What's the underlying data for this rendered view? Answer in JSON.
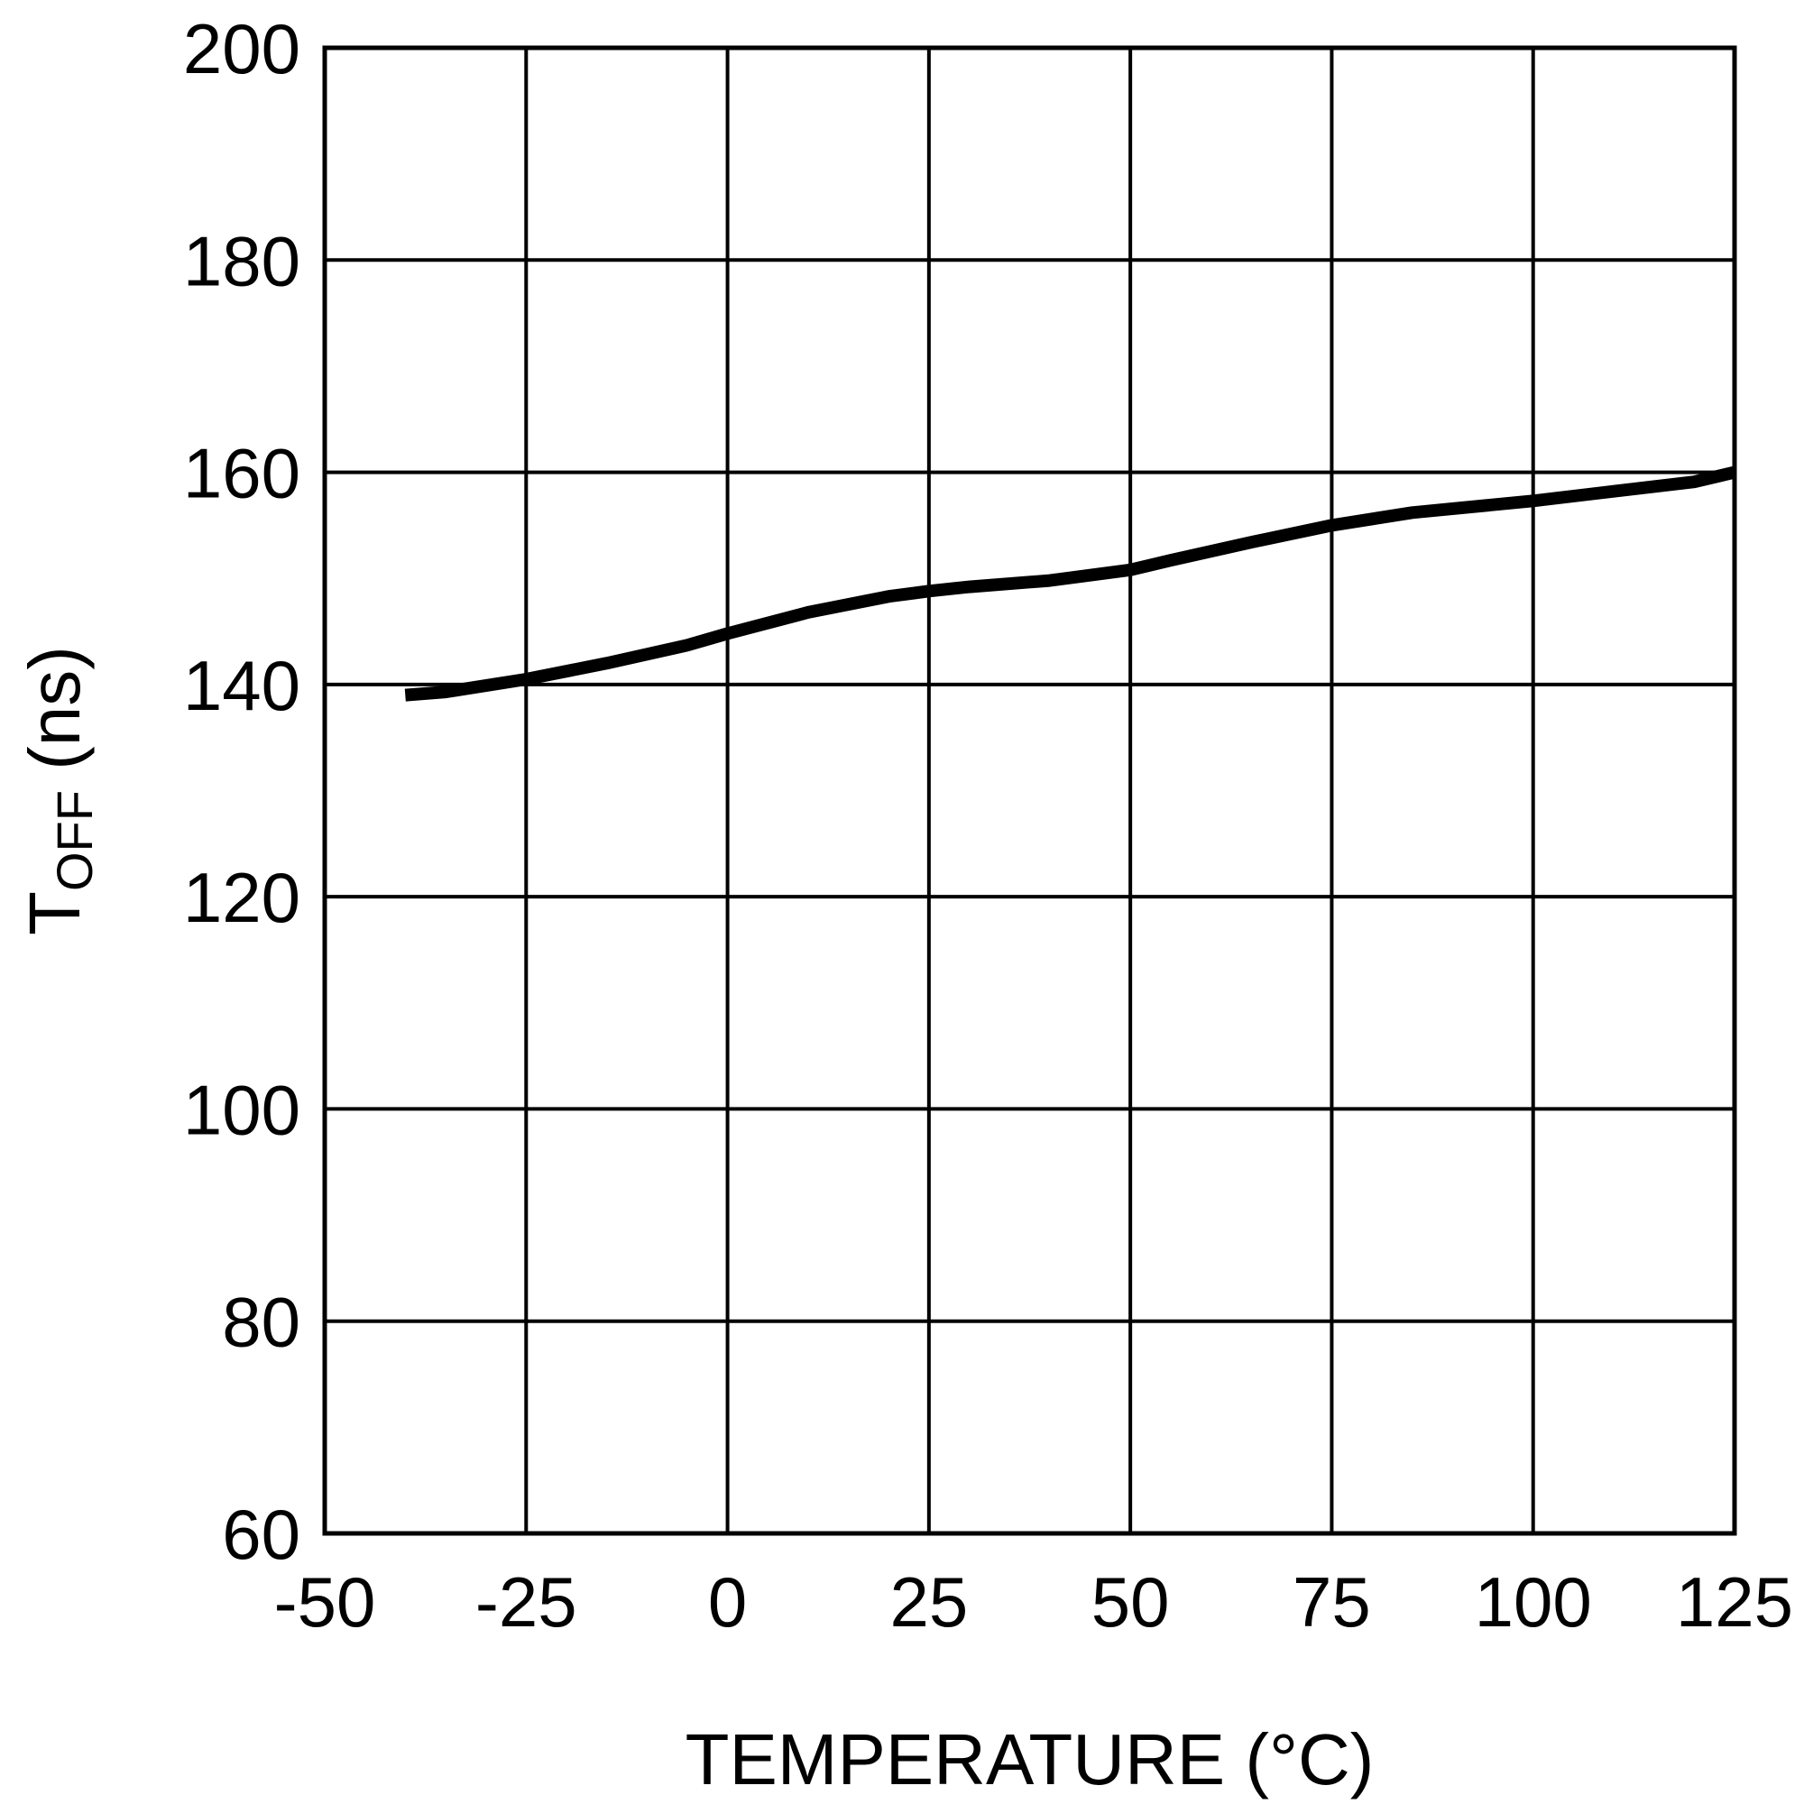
{
  "chart_data": {
    "type": "line",
    "xlabel": "TEMPERATURE (°C)",
    "ylabel": {
      "main": "T",
      "subscript": "OFF",
      "unit": " (ns)"
    },
    "xlim": [
      -50,
      125
    ],
    "ylim": [
      60,
      200
    ],
    "x_ticks": [
      -50,
      -25,
      0,
      25,
      50,
      75,
      100,
      125
    ],
    "y_ticks": [
      60,
      80,
      100,
      120,
      140,
      160,
      180,
      200
    ],
    "grid": true,
    "series": [
      {
        "color": "#000000",
        "x": [
          -40,
          -35,
          -25,
          -15,
          -5,
          0,
          10,
          20,
          25,
          30,
          40,
          50,
          55,
          65,
          75,
          85,
          100,
          110,
          120,
          125
        ],
        "y": [
          139,
          139.3,
          140.5,
          142,
          143.7,
          144.8,
          146.8,
          148.3,
          148.8,
          149.2,
          149.8,
          150.8,
          151.7,
          153.4,
          155,
          156.2,
          157.3,
          158.2,
          159.1,
          160
        ]
      }
    ]
  }
}
